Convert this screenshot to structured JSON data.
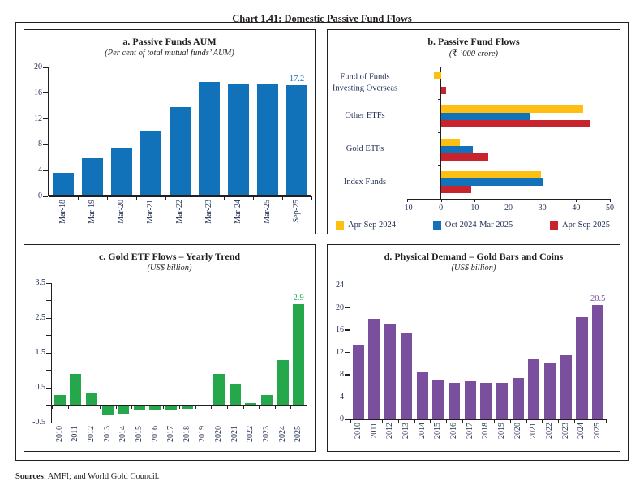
{
  "title": "Chart 1.41: Domestic Passive Fund Flows",
  "sources": {
    "label": "Sources",
    "rest": ": AMFI; and World Gold Council."
  },
  "colors": {
    "blue": "#1272b9",
    "yellow": "#fcbf12",
    "red": "#c8242d",
    "green": "#24a84b",
    "purple": "#7a4f9e",
    "axis": "#231f20",
    "tick_text": "#1f2d54"
  },
  "chart_data": [
    {
      "id": "a",
      "type": "bar",
      "title": "a. Passive Funds AUM",
      "subtitle": "(Per cent of total mutual funds’ AUM)",
      "categories": [
        "Mar-18",
        "Mar-19",
        "Mar-20",
        "Mar-21",
        "Mar-22",
        "Mar-23",
        "Mar-24",
        "Mar-25",
        "Sep-25"
      ],
      "values": [
        3.7,
        5.9,
        7.4,
        10.2,
        13.9,
        17.7,
        17.5,
        17.4,
        17.2
      ],
      "ylim": [
        0,
        20
      ],
      "ytick_values": [
        0,
        4,
        8,
        12,
        16,
        20
      ],
      "ytick_labels": [
        "0",
        "4",
        "8",
        "12",
        "16",
        "20"
      ],
      "ytick_marks": [
        0,
        4,
        8,
        12,
        16,
        20
      ],
      "color": "#1272b9",
      "last_value_label": "17.2",
      "grid": false
    },
    {
      "id": "b",
      "type": "bar-horizontal",
      "title": "b. Passive Fund Flows",
      "subtitle": "(₹ ’000 crore)",
      "categories": [
        "Fund of Funds Investing Overseas",
        "Other ETFs",
        "Gold ETFs",
        "Index Funds"
      ],
      "series": [
        {
          "name": "Apr-Sep 2024",
          "color": "#fcbf12",
          "values": [
            -2,
            42,
            5.5,
            29.5
          ]
        },
        {
          "name": "Oct 2024-Mar 2025",
          "color": "#1272b9",
          "values": [
            0,
            26.5,
            9.5,
            30
          ]
        },
        {
          "name": "Apr-Sep 2025",
          "color": "#c8242d",
          "values": [
            1.5,
            44,
            14,
            9
          ]
        }
      ],
      "xlim": [
        -10,
        50
      ],
      "xtick_values": [
        -10,
        0,
        10,
        20,
        30,
        40,
        50
      ],
      "xtick_labels": [
        "-10",
        "0",
        "10",
        "20",
        "30",
        "40",
        "50"
      ],
      "legend_position": "bottom",
      "grid": false
    },
    {
      "id": "c",
      "type": "bar",
      "title": "c. Gold ETF Flows – Yearly Trend",
      "subtitle": "(US$ billion)",
      "categories": [
        "2010",
        "2011",
        "2012",
        "2013",
        "2014",
        "2015",
        "2016",
        "2017",
        "2018",
        "2019",
        "2020",
        "2021",
        "2022",
        "2023",
        "2024",
        "2025"
      ],
      "values": [
        0.3,
        0.9,
        0.35,
        -0.3,
        -0.25,
        -0.13,
        -0.16,
        -0.13,
        -0.1,
        0.02,
        0.9,
        0.6,
        0.05,
        0.3,
        1.3,
        2.9
      ],
      "ylim": [
        -0.5,
        3.5
      ],
      "ytick_values": [
        -0.5,
        0.5,
        1.5,
        2.5,
        3.5
      ],
      "ytick_labels": [
        "-0.5",
        "0.5",
        "1.5",
        "2.5",
        "3.5"
      ],
      "ytick_marks": [
        -0.5,
        0,
        0.5,
        1,
        1.5,
        2,
        2.5,
        3,
        3.5
      ],
      "color": "#24a84b",
      "last_value_label": "2.9",
      "grid": false
    },
    {
      "id": "d",
      "type": "bar",
      "title": "d. Physical Demand – Gold Bars and Coins",
      "subtitle": "(US$ billion)",
      "categories": [
        "2010",
        "2011",
        "2012",
        "2013",
        "2014",
        "2015",
        "2016",
        "2017",
        "2018",
        "2019",
        "2020",
        "2021",
        "2022",
        "2023",
        "2024",
        "2025"
      ],
      "values": [
        13.4,
        18.0,
        17.1,
        15.5,
        8.4,
        7.2,
        6.5,
        6.8,
        6.6,
        6.5,
        7.4,
        10.8,
        10.0,
        11.5,
        18.4,
        20.5
      ],
      "ylim": [
        0,
        24
      ],
      "ytick_values": [
        0,
        4,
        8,
        12,
        16,
        20,
        24
      ],
      "ytick_labels": [
        "0",
        "4",
        "8",
        "12",
        "16",
        "20",
        "24"
      ],
      "ytick_marks": [
        0,
        4,
        8,
        12,
        16,
        20,
        24
      ],
      "color": "#7a4f9e",
      "last_value_label": "20.5",
      "grid": false
    }
  ]
}
